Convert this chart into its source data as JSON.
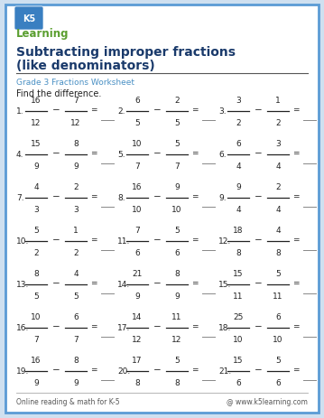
{
  "title_line1": "Subtracting improper fractions",
  "title_line2": "(like denominators)",
  "subtitle": "Grade 3 Fractions Worksheet",
  "instruction": "Find the difference.",
  "bg_color": "#cfe0f0",
  "inner_bg": "#ffffff",
  "border_color": "#5b9bd5",
  "title_color": "#1a3a6b",
  "subtitle_color": "#4a90c4",
  "text_color": "#222222",
  "footer_left": "Online reading & math for K-5",
  "footer_right": "@ www.k5learning.com",
  "problems": [
    {
      "num": "1",
      "n1": "16",
      "d1": "12",
      "n2": "7",
      "d2": "12"
    },
    {
      "num": "2",
      "n1": "6",
      "d1": "5",
      "n2": "2",
      "d2": "5"
    },
    {
      "num": "3",
      "n1": "3",
      "d1": "2",
      "n2": "1",
      "d2": "2"
    },
    {
      "num": "4",
      "n1": "15",
      "d1": "9",
      "n2": "8",
      "d2": "9"
    },
    {
      "num": "5",
      "n1": "10",
      "d1": "7",
      "n2": "5",
      "d2": "7"
    },
    {
      "num": "6",
      "n1": "6",
      "d1": "4",
      "n2": "3",
      "d2": "4"
    },
    {
      "num": "7",
      "n1": "4",
      "d1": "3",
      "n2": "2",
      "d2": "3"
    },
    {
      "num": "8",
      "n1": "16",
      "d1": "10",
      "n2": "9",
      "d2": "10"
    },
    {
      "num": "9",
      "n1": "9",
      "d1": "4",
      "n2": "2",
      "d2": "4"
    },
    {
      "num": "10",
      "n1": "5",
      "d1": "2",
      "n2": "1",
      "d2": "2"
    },
    {
      "num": "11",
      "n1": "7",
      "d1": "6",
      "n2": "5",
      "d2": "6"
    },
    {
      "num": "12",
      "n1": "18",
      "d1": "8",
      "n2": "4",
      "d2": "8"
    },
    {
      "num": "13",
      "n1": "8",
      "d1": "5",
      "n2": "4",
      "d2": "5"
    },
    {
      "num": "14",
      "n1": "21",
      "d1": "9",
      "n2": "8",
      "d2": "9"
    },
    {
      "num": "15",
      "n1": "15",
      "d1": "11",
      "n2": "5",
      "d2": "11"
    },
    {
      "num": "16",
      "n1": "10",
      "d1": "7",
      "n2": "6",
      "d2": "7"
    },
    {
      "num": "17",
      "n1": "14",
      "d1": "12",
      "n2": "11",
      "d2": "12"
    },
    {
      "num": "18",
      "n1": "25",
      "d1": "10",
      "n2": "6",
      "d2": "10"
    },
    {
      "num": "19",
      "n1": "16",
      "d1": "9",
      "n2": "8",
      "d2": "9"
    },
    {
      "num": "20",
      "n1": "17",
      "d1": "8",
      "n2": "5",
      "d2": "8"
    },
    {
      "num": "21",
      "n1": "15",
      "d1": "6",
      "n2": "5",
      "d2": "6"
    }
  ]
}
